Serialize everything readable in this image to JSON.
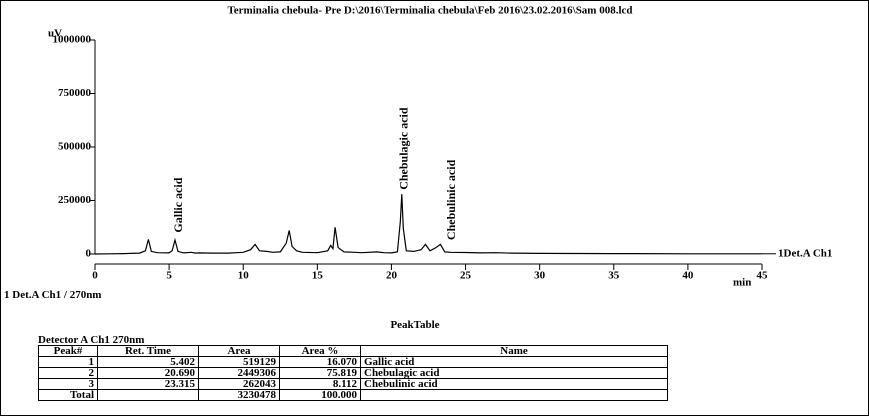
{
  "chart_data": {
    "type": "line",
    "title": "Terminalia chebula- Pre D:\\2016\\Terminalia chebula\\Feb 2016\\23.02.2016\\Sam 008.lcd",
    "y_label": "uV",
    "x_label": "min",
    "note": "1 Det.A Ch1 / 270nm",
    "x": [
      0,
      1,
      2,
      3,
      3.4,
      3.6,
      3.8,
      4.2,
      5,
      5.2,
      5.4,
      5.6,
      6,
      6.5,
      6.8,
      7,
      8,
      9,
      10,
      10.5,
      10.8,
      11.1,
      11.6,
      12,
      12.5,
      12.9,
      13.1,
      13.3,
      13.6,
      14,
      15,
      15.7,
      15.9,
      16.05,
      16.2,
      16.4,
      16.8,
      17.5,
      18,
      19,
      19.5,
      20,
      20.4,
      20.6,
      20.7,
      20.8,
      21,
      21.5,
      22,
      22.3,
      22.6,
      23,
      23.3,
      23.6,
      24,
      25,
      26,
      27,
      28,
      30,
      35,
      40,
      45
    ],
    "series": [
      {
        "name": "1Det.A Ch1",
        "color": "#000000",
        "values": [
          0,
          1000,
          2000,
          4000,
          15000,
          68000,
          12000,
          6000,
          5000,
          15000,
          65000,
          12000,
          5000,
          8000,
          4000,
          5000,
          4000,
          4000,
          8000,
          20000,
          45000,
          15000,
          12000,
          8000,
          10000,
          50000,
          110000,
          35000,
          15000,
          8000,
          6000,
          15000,
          40000,
          25000,
          125000,
          30000,
          10000,
          8000,
          6000,
          10000,
          6000,
          5000,
          10000,
          150000,
          280000,
          120000,
          15000,
          12000,
          20000,
          45000,
          15000,
          30000,
          45000,
          10000,
          8000,
          7000,
          5000,
          6000,
          4000,
          3000,
          2000,
          1000,
          1000
        ]
      }
    ],
    "annotations": [
      {
        "text": "Gallic acid",
        "x": 5.7,
        "y": 100000
      },
      {
        "text": "Chebulagic acid",
        "x": 20.9,
        "y": 300000
      },
      {
        "text": "Chebulinic acid",
        "x": 24.1,
        "y": 65000
      }
    ],
    "xlim": [
      0,
      45
    ],
    "xticks": [
      0,
      5,
      10,
      15,
      20,
      25,
      30,
      35,
      40,
      45
    ],
    "ylim": [
      0,
      1000000
    ],
    "yticks": [
      0,
      250000,
      500000,
      750000,
      1000000
    ]
  },
  "peak_table": {
    "title": "PeakTable",
    "detector": "Detector A Ch1 270nm",
    "header": [
      "Peak#",
      "Ret. Time",
      "Area",
      "Area %",
      "Name"
    ],
    "rows": [
      [
        "1",
        "5.402",
        "519129",
        "16.070",
        "Gallic acid"
      ],
      [
        "2",
        "20.690",
        "2449306",
        "75.819",
        "Chebulagic acid"
      ],
      [
        "3",
        "23.315",
        "262043",
        "8.112",
        "Chebulinic acid"
      ]
    ],
    "total": [
      "Total",
      "",
      "3230478",
      "100.000",
      ""
    ]
  }
}
